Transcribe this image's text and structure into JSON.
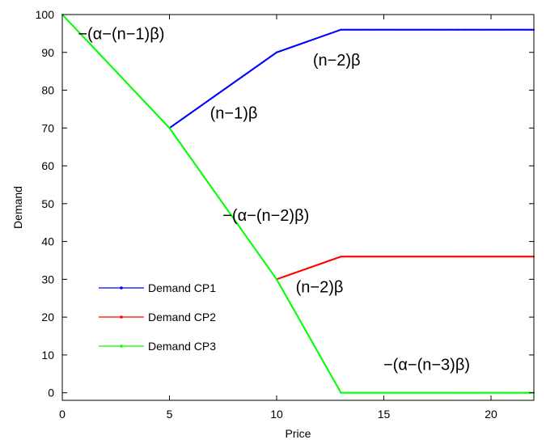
{
  "chart_data": {
    "type": "line",
    "title": "",
    "xlabel": "Price",
    "ylabel": "Demand",
    "xlim": [
      0,
      22
    ],
    "ylim": [
      -2,
      100
    ],
    "xticks": [
      0,
      5,
      10,
      15,
      20
    ],
    "yticks": [
      0,
      10,
      20,
      30,
      40,
      50,
      60,
      70,
      80,
      90,
      100
    ],
    "grid": false,
    "legend_position": "bottom-left",
    "series": [
      {
        "name": "Demand CP1",
        "color": "#0000ff",
        "x": [
          5,
          10,
          13,
          22
        ],
        "y": [
          70,
          90,
          96,
          96
        ]
      },
      {
        "name": "Demand CP2",
        "color": "#ff0000",
        "x": [
          10,
          13,
          22
        ],
        "y": [
          30,
          36,
          36
        ]
      },
      {
        "name": "Demand CP3",
        "color": "#00ff00",
        "x": [
          0,
          5,
          10,
          13,
          22
        ],
        "y": [
          100,
          70,
          30,
          0,
          0
        ]
      }
    ],
    "annotations": [
      {
        "text": "−(α−(n−1)β)",
        "x": 2.75,
        "y": 93.5
      },
      {
        "text": "(n−2)β",
        "x": 12.8,
        "y": 86.5
      },
      {
        "text": "(n−1)β",
        "x": 8.0,
        "y": 72.5
      },
      {
        "text": "−(α−(n−2)β)",
        "x": 9.5,
        "y": 45.5
      },
      {
        "text": "(n−2)β",
        "x": 12.0,
        "y": 26.5
      },
      {
        "text": "−(α−(n−3)β)",
        "x": 17.0,
        "y": 6.0
      }
    ]
  }
}
